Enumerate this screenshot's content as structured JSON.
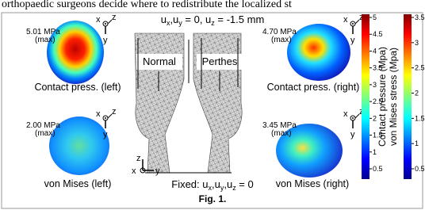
{
  "top_text": "orthopaedic surgeons decide where to redistribute the localized st",
  "figure": {
    "panels": [
      {
        "value": "5.01 MPa",
        "note": "(max)",
        "label": "Contact press. (left)"
      },
      {
        "value": "4.70 MPa",
        "note": "(max)",
        "label": "Contact press. (right)"
      },
      {
        "value": "2.00 MPa",
        "note": "(max)",
        "label": "von Mises (left)"
      },
      {
        "value": "3.45 MPa",
        "note": "(max)",
        "label": "von Mises (right)"
      }
    ],
    "axis_letters": {
      "x": "x",
      "y": "y",
      "z": "z"
    },
    "load": [
      "u",
      "x",
      ",u",
      "y",
      " = 0, u",
      "z",
      " = -1.5 mm"
    ],
    "fixed": [
      "Fixed: u",
      "x",
      ",u",
      "y",
      ",u",
      "z",
      " = 0"
    ],
    "models": [
      "Normal",
      "Perthes"
    ],
    "colorbars": [
      {
        "label": "Contact pressure (Mpa)",
        "ticks": [
          5,
          4.5,
          4,
          3.5,
          3,
          2.5,
          2,
          1.5,
          1,
          0.5
        ]
      },
      {
        "label": "von Mises stress (Mpa)",
        "ticks": [
          3.5,
          3,
          2.5,
          2,
          1.5,
          1,
          0.5
        ]
      }
    ],
    "caption": "Fig. 1."
  }
}
